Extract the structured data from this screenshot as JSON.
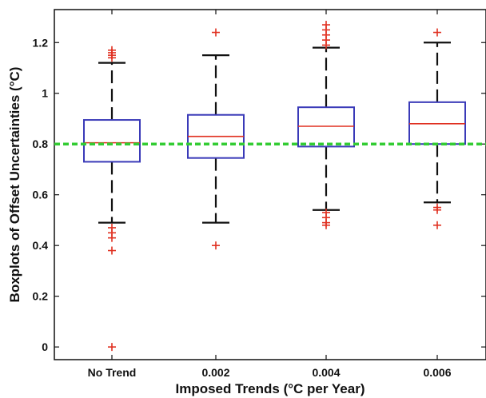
{
  "chart_data": {
    "type": "boxplot",
    "xlabel": "Imposed Trends (°C per Year)",
    "ylabel": "Boxplots of Offset Uncertainties (°C)",
    "categories": [
      "No Trend",
      "0.002",
      "0.004",
      "0.006"
    ],
    "ylim": [
      -0.05,
      1.33
    ],
    "yticks": [
      0,
      0.2,
      0.4,
      0.6,
      0.8,
      1,
      1.2
    ],
    "ytick_labels": [
      "0",
      "0.2",
      "0.4",
      "0.6",
      "0.8",
      "1",
      "1.2"
    ],
    "reference_line": {
      "value": 0.8,
      "color": "#33cc33",
      "style": "dashed"
    },
    "box_color": "#3a3ab8",
    "median_color": "#e03020",
    "whisker_color": "#111111",
    "outlier_color": "#e03020",
    "boxes": [
      {
        "category": "No Trend",
        "whisker_low": 0.49,
        "q1": 0.73,
        "median": 0.805,
        "q3": 0.895,
        "whisker_high": 1.12,
        "outliers": [
          1.17,
          1.16,
          1.15,
          1.14,
          0.47,
          0.45,
          0.43,
          0.38,
          0.0
        ]
      },
      {
        "category": "0.002",
        "whisker_low": 0.49,
        "q1": 0.745,
        "median": 0.83,
        "q3": 0.915,
        "whisker_high": 1.15,
        "outliers": [
          1.24,
          0.4
        ]
      },
      {
        "category": "0.004",
        "whisker_low": 0.54,
        "q1": 0.79,
        "median": 0.87,
        "q3": 0.945,
        "whisker_high": 1.18,
        "outliers": [
          1.27,
          1.25,
          1.23,
          1.21,
          1.19,
          0.53,
          0.51,
          0.49,
          0.48
        ]
      },
      {
        "category": "0.006",
        "whisker_low": 0.57,
        "q1": 0.8,
        "median": 0.88,
        "q3": 0.965,
        "whisker_high": 1.2,
        "outliers": [
          1.24,
          0.55,
          0.54,
          0.48
        ]
      }
    ]
  }
}
